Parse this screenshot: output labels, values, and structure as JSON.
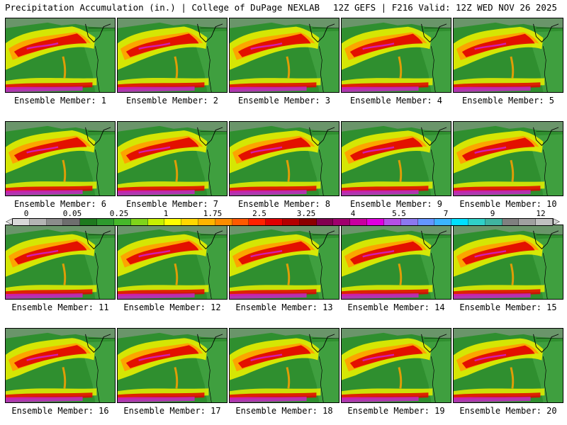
{
  "header": {
    "left": "Precipitation Accumulation (in.) | College of DuPage NEXLAB",
    "right": "12Z GEFS | F216 Valid: 12Z WED NOV 26 2025"
  },
  "members": [
    "Ensemble Member: 1",
    "Ensemble Member: 2",
    "Ensemble Member: 3",
    "Ensemble Member: 4",
    "Ensemble Member: 5",
    "Ensemble Member: 6",
    "Ensemble Member: 7",
    "Ensemble Member: 8",
    "Ensemble Member: 9",
    "Ensemble Member: 10",
    "Ensemble Member: 11",
    "Ensemble Member: 12",
    "Ensemble Member: 13",
    "Ensemble Member: 14",
    "Ensemble Member: 15",
    "Ensemble Member: 16",
    "Ensemble Member: 17",
    "Ensemble Member: 18",
    "Ensemble Member: 19",
    "Ensemble Member: 20"
  ],
  "scale": {
    "labels": [
      "0",
      "0.05",
      "0.25",
      "1",
      "1.75",
      "2.5",
      "3.25",
      "4",
      "5.5",
      "7",
      "9",
      "12"
    ],
    "colors": [
      "#d8d8d8",
      "#b4b4b4",
      "#8c8c8c",
      "#6e6e6e",
      "#1f7a1f",
      "#2e9a2e",
      "#46b82a",
      "#7fd41a",
      "#c8f000",
      "#ffff00",
      "#ffd800",
      "#ffb400",
      "#ff8c00",
      "#ff5a00",
      "#ff2200",
      "#e00000",
      "#b40000",
      "#8c0000",
      "#820050",
      "#a0006e",
      "#c800a0",
      "#e000e0",
      "#b450e6",
      "#8c78f0",
      "#6496ff",
      "#3cb4ff",
      "#00e0ff",
      "#30d0c8",
      "#40b4a0",
      "#808080",
      "#a0a0a0",
      "#c0c0c0"
    ]
  },
  "palette": {
    "ocean_green": "#2f8f2f",
    "dry_green": "#3f9f3f",
    "yellow": "#e8f000",
    "orange": "#ffa000",
    "red": "#e00000",
    "magenta": "#d020d0",
    "land_gray": "#9a9a9a"
  }
}
